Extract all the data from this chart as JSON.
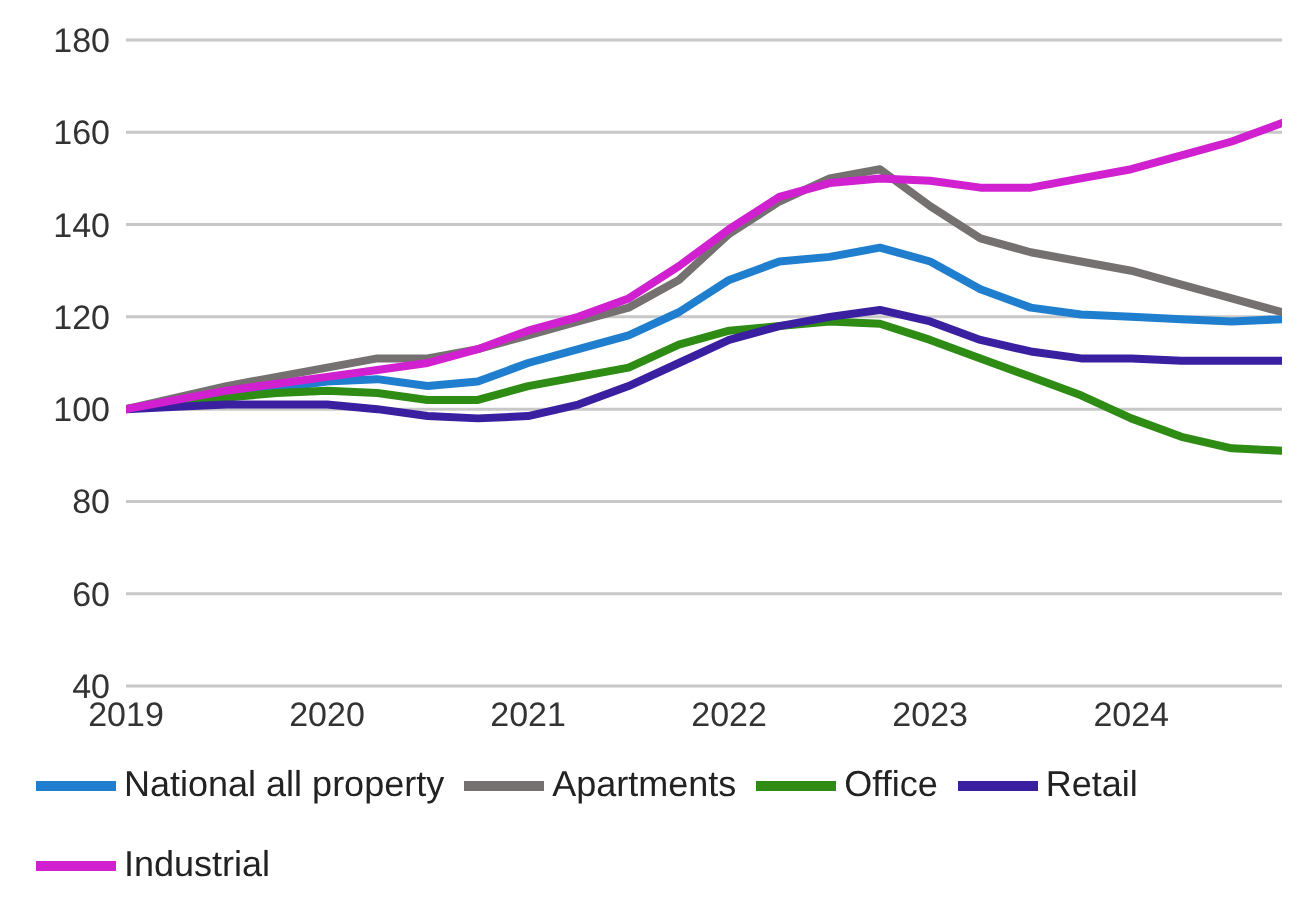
{
  "chart_data": {
    "type": "line",
    "x": [
      2019,
      2019.25,
      2019.5,
      2019.75,
      2020,
      2020.25,
      2020.5,
      2020.75,
      2021,
      2021.25,
      2021.5,
      2021.75,
      2022,
      2022.25,
      2022.5,
      2022.75,
      2023,
      2023.25,
      2023.5,
      2023.75,
      2024,
      2024.25,
      2024.5,
      2024.75
    ],
    "series": [
      {
        "name": "National all property",
        "color": "#1f7fce",
        "values": [
          null,
          null,
          103,
          104.5,
          106,
          106.5,
          105,
          106,
          110,
          113,
          116,
          121,
          128,
          132,
          133,
          135,
          132,
          126,
          122,
          120.5,
          120,
          119.5,
          119,
          119.5
        ]
      },
      {
        "name": "Apartments",
        "color": "#757171",
        "values": [
          100,
          102.5,
          105,
          107,
          109,
          111,
          111,
          113,
          116,
          119,
          122,
          128,
          138,
          145,
          150,
          152,
          144,
          137,
          134,
          132,
          130,
          127,
          124,
          121
        ]
      },
      {
        "name": "Office",
        "color": "#2e8b14",
        "values": [
          100,
          101.5,
          102.5,
          103.5,
          104,
          103.5,
          102,
          102,
          105,
          107,
          109,
          114,
          117,
          118,
          119,
          118.5,
          115,
          111,
          107,
          103,
          98,
          94,
          91.5,
          91
        ]
      },
      {
        "name": "Retail",
        "color": "#3a1fa0",
        "values": [
          100,
          100.5,
          101,
          101,
          101,
          100,
          98.5,
          98,
          98.5,
          101,
          105,
          110,
          115,
          118,
          120,
          121.5,
          119,
          115,
          112.5,
          111,
          111,
          110.5,
          110.5,
          110.5
        ]
      },
      {
        "name": "Industrial",
        "color": "#d020d0",
        "values": [
          100,
          102,
          104,
          105.5,
          107,
          108.5,
          110,
          113,
          117,
          120,
          124,
          131,
          139,
          146,
          149,
          150,
          149.5,
          148,
          148,
          150,
          152,
          155,
          158,
          162
        ]
      }
    ],
    "xlim": [
      2019,
      2024.75
    ],
    "xticks": [
      2019,
      2020,
      2021,
      2022,
      2023,
      2024
    ],
    "ylim": [
      40,
      180
    ],
    "yticks": [
      40,
      60,
      80,
      100,
      120,
      140,
      160,
      180
    ],
    "grid": "y",
    "legend": "bottom",
    "marker": "none",
    "line_style": "solid"
  }
}
